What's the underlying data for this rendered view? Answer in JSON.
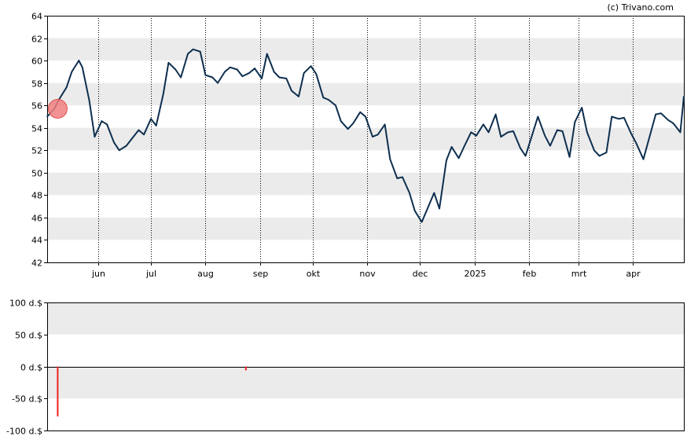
{
  "copyright": "(c) Trivano.com",
  "chart_data": [
    {
      "type": "line",
      "title": "",
      "xlabel": "",
      "ylabel": "",
      "ylim": [
        42,
        64
      ],
      "yticks": [
        42,
        44,
        46,
        48,
        50,
        52,
        54,
        56,
        58,
        60,
        62,
        64
      ],
      "ytick_labels": [
        "42",
        "44",
        "46",
        "48",
        "50",
        "52",
        "54",
        "56",
        "58",
        "60",
        "62",
        "64"
      ],
      "xlim": [
        "2024-05-03",
        "2025-04-30"
      ],
      "xticks": [
        {
          "label": "jun",
          "date": "2024-06-01"
        },
        {
          "label": "jul",
          "date": "2024-07-01"
        },
        {
          "label": "aug",
          "date": "2024-08-01"
        },
        {
          "label": "sep",
          "date": "2024-09-01"
        },
        {
          "label": "okt",
          "date": "2024-10-01"
        },
        {
          "label": "nov",
          "date": "2024-11-01"
        },
        {
          "label": "dec",
          "date": "2024-12-01"
        },
        {
          "label": "2025",
          "date": "2025-01-01"
        },
        {
          "label": "feb",
          "date": "2025-02-01"
        },
        {
          "label": "mrt",
          "date": "2025-03-01"
        },
        {
          "label": "apr",
          "date": "2025-04-01"
        }
      ],
      "grid": "vertical dotted at months, alternating horizontal bands",
      "line_color": "#0d2f4f",
      "band_color": "#ebebeb",
      "marker": {
        "date": "2024-05-09",
        "value": 55.7,
        "color": "#f07f7f"
      },
      "series": [
        {
          "x": [
            "2024-05-03",
            "2024-05-07",
            "2024-05-10",
            "2024-05-14",
            "2024-05-17",
            "2024-05-21",
            "2024-05-23",
            "2024-05-27",
            "2024-05-30",
            "2024-06-03",
            "2024-06-06",
            "2024-06-10",
            "2024-06-13",
            "2024-06-17",
            "2024-06-20",
            "2024-06-24",
            "2024-06-27",
            "2024-07-01",
            "2024-07-04",
            "2024-07-08",
            "2024-07-11",
            "2024-07-15",
            "2024-07-18",
            "2024-07-22",
            "2024-07-25",
            "2024-07-29",
            "2024-08-01",
            "2024-08-05",
            "2024-08-08",
            "2024-08-12",
            "2024-08-15",
            "2024-08-19",
            "2024-08-22",
            "2024-08-26",
            "2024-08-29",
            "2024-09-02",
            "2024-09-05",
            "2024-09-09",
            "2024-09-12",
            "2024-09-16",
            "2024-09-19",
            "2024-09-23",
            "2024-09-26",
            "2024-09-30",
            "2024-10-03",
            "2024-10-07",
            "2024-10-10",
            "2024-10-14",
            "2024-10-17",
            "2024-10-21",
            "2024-10-24",
            "2024-10-28",
            "2024-10-31",
            "2024-11-04",
            "2024-11-07",
            "2024-11-11",
            "2024-11-14",
            "2024-11-18",
            "2024-11-21",
            "2024-11-25",
            "2024-11-28",
            "2024-12-02",
            "2024-12-05",
            "2024-12-09",
            "2024-12-12",
            "2024-12-16",
            "2024-12-19",
            "2024-12-23",
            "2024-12-26",
            "2024-12-30",
            "2025-01-02",
            "2025-01-06",
            "2025-01-09",
            "2025-01-13",
            "2025-01-16",
            "2025-01-20",
            "2025-01-23",
            "2025-01-27",
            "2025-01-30",
            "2025-02-03",
            "2025-02-06",
            "2025-02-10",
            "2025-02-13",
            "2025-02-17",
            "2025-02-20",
            "2025-02-24",
            "2025-02-27",
            "2025-03-03",
            "2025-03-06",
            "2025-03-10",
            "2025-03-13",
            "2025-03-17",
            "2025-03-20",
            "2025-03-24",
            "2025-03-27",
            "2025-03-31",
            "2025-04-03",
            "2025-04-07",
            "2025-04-10",
            "2025-04-14",
            "2025-04-17",
            "2025-04-21",
            "2025-04-24",
            "2025-04-28",
            "2025-04-30"
          ],
          "values": [
            55.0,
            55.7,
            56.6,
            57.6,
            59.0,
            60.0,
            59.4,
            56.4,
            53.2,
            54.6,
            54.3,
            52.7,
            52.0,
            52.4,
            53.0,
            53.8,
            53.4,
            54.8,
            54.2,
            57.0,
            59.8,
            59.2,
            58.5,
            60.6,
            61.0,
            60.8,
            58.7,
            58.5,
            58.0,
            59.0,
            59.4,
            59.2,
            58.6,
            58.9,
            59.3,
            58.4,
            60.6,
            59.0,
            58.5,
            58.4,
            57.3,
            56.8,
            58.9,
            59.5,
            58.8,
            56.7,
            56.5,
            56.0,
            54.6,
            53.9,
            54.4,
            55.4,
            55.0,
            53.2,
            53.4,
            54.3,
            51.2,
            49.5,
            49.6,
            48.2,
            46.6,
            45.6,
            46.7,
            48.2,
            46.8,
            51.1,
            52.3,
            51.3,
            52.3,
            53.6,
            53.3,
            54.3,
            53.6,
            55.2,
            53.2,
            53.6,
            53.7,
            52.2,
            51.5,
            53.5,
            55.0,
            53.3,
            52.4,
            53.8,
            53.7,
            51.4,
            54.5,
            55.8,
            53.6,
            52.0,
            51.5,
            51.8,
            55.0,
            54.8,
            54.9,
            53.5,
            52.6,
            51.2,
            52.9,
            55.2,
            55.3,
            54.7,
            54.4,
            53.6,
            56.8
          ]
        }
      ]
    },
    {
      "type": "bar",
      "title": "",
      "xlabel": "",
      "ylabel": "",
      "ylim": [
        -100,
        100
      ],
      "yticks": [
        -100,
        -50,
        0,
        50,
        100
      ],
      "ytick_labels": [
        "-100 d.$",
        "-50 d.$",
        "0 d.$",
        "50 d.$",
        "100 d.$"
      ],
      "xlim": [
        "2024-05-03",
        "2025-04-30"
      ],
      "bar_color": "#ee2222",
      "bands": [
        [
          50,
          100
        ],
        [
          -50,
          0
        ]
      ],
      "band_color": "#ebebeb",
      "series": [
        {
          "x": [
            "2024-05-09",
            "2024-08-24"
          ],
          "values": [
            -78,
            -6
          ]
        }
      ]
    }
  ]
}
